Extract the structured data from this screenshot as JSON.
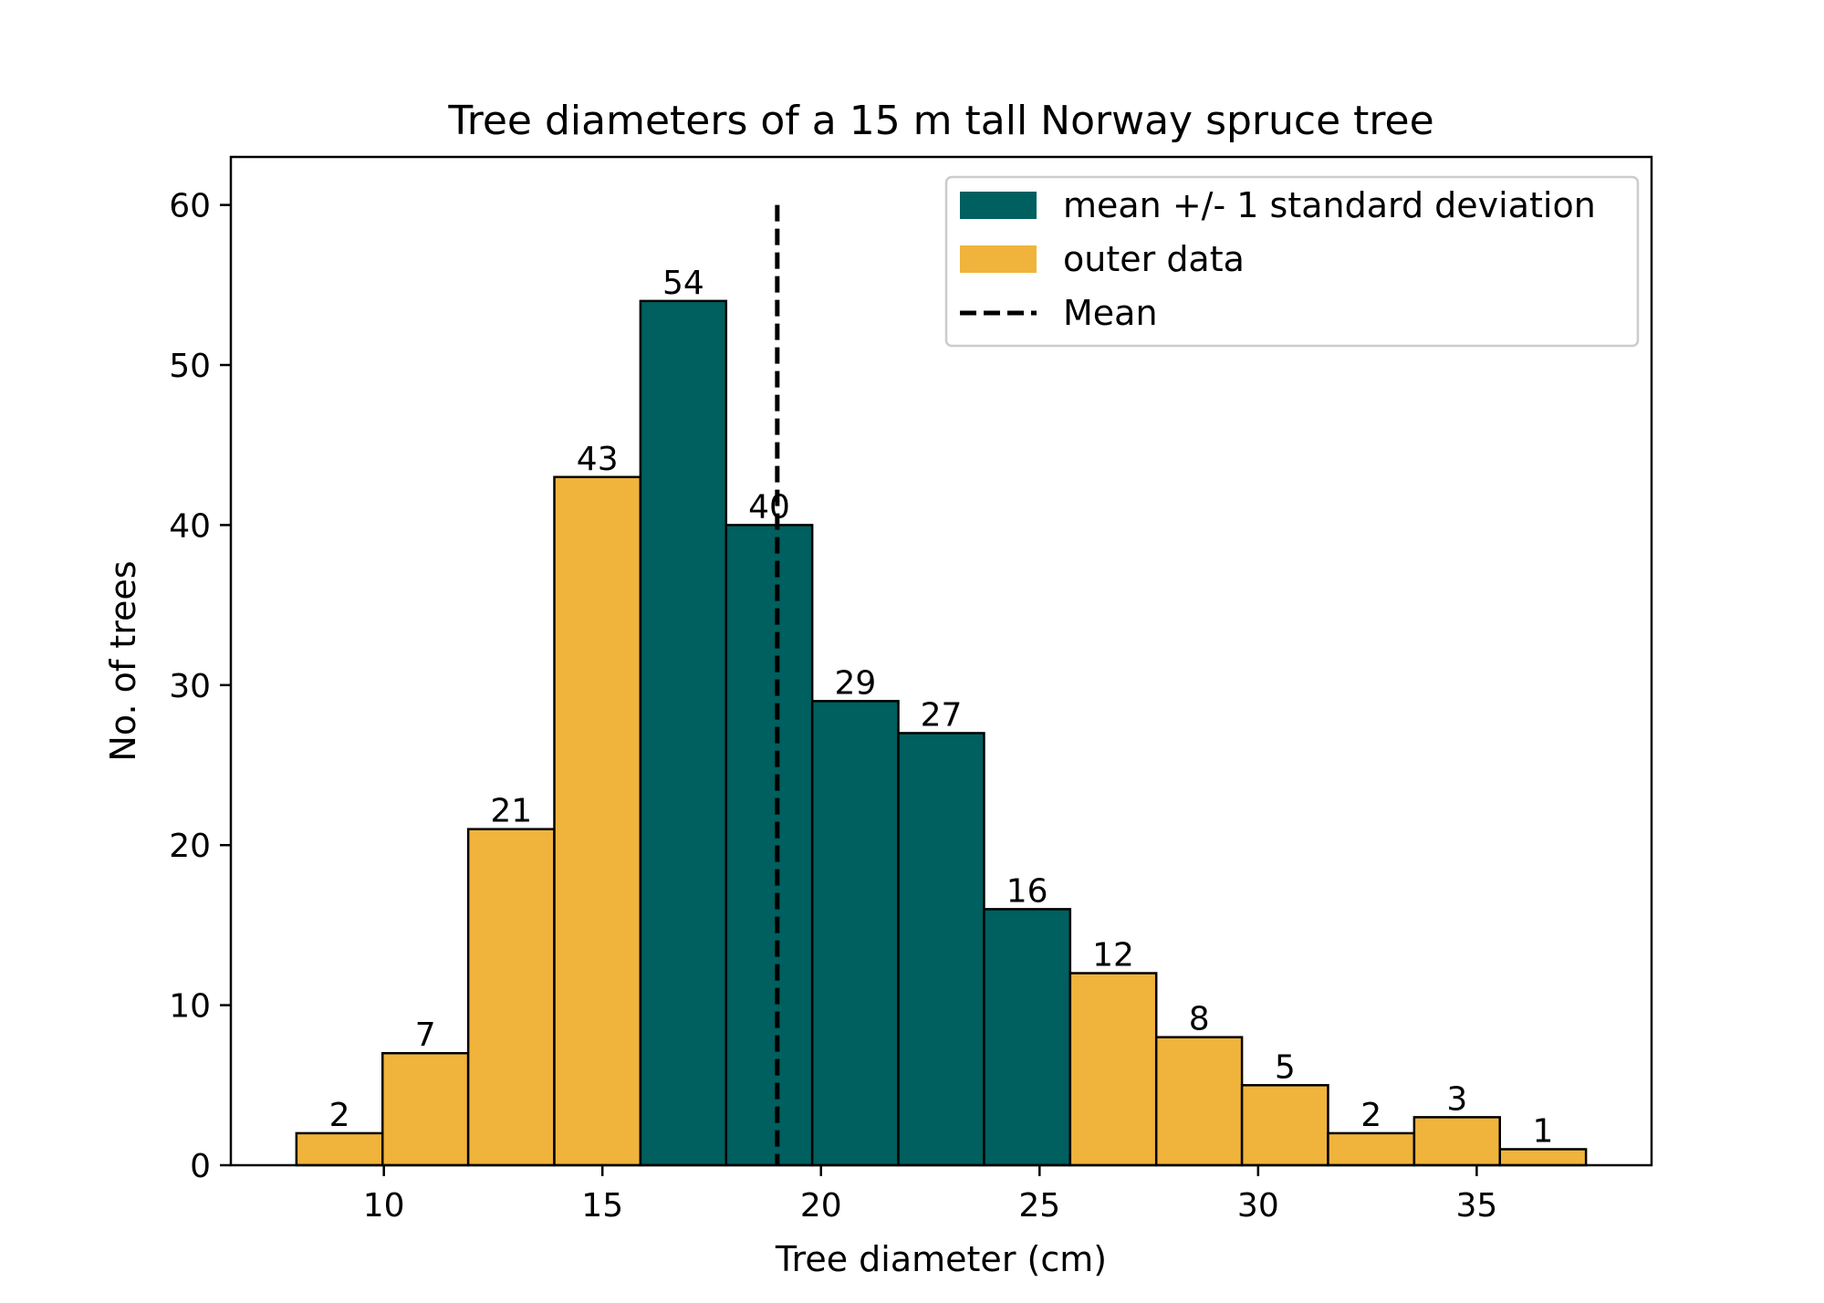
{
  "chart_data": {
    "type": "bar",
    "title": "Tree diameters of a 15 m tall Norway spruce tree",
    "xlabel": "Tree diameter (cm)",
    "ylabel": "No. of trees",
    "xlim": [
      6.5,
      39
    ],
    "ylim": [
      0,
      63
    ],
    "xticks": [
      10,
      15,
      20,
      25,
      30,
      35
    ],
    "yticks": [
      0,
      10,
      20,
      30,
      40,
      50,
      60
    ],
    "bins": [
      {
        "start": 8.0,
        "end": 9.97,
        "value": 2,
        "group": "outer"
      },
      {
        "start": 9.97,
        "end": 11.93,
        "value": 7,
        "group": "outer"
      },
      {
        "start": 11.93,
        "end": 13.9,
        "value": 21,
        "group": "outer"
      },
      {
        "start": 13.9,
        "end": 15.87,
        "value": 43,
        "group": "outer"
      },
      {
        "start": 15.87,
        "end": 17.83,
        "value": 54,
        "group": "inner"
      },
      {
        "start": 17.83,
        "end": 19.8,
        "value": 40,
        "group": "inner"
      },
      {
        "start": 19.8,
        "end": 21.77,
        "value": 29,
        "group": "inner"
      },
      {
        "start": 21.77,
        "end": 23.73,
        "value": 27,
        "group": "inner"
      },
      {
        "start": 23.73,
        "end": 25.7,
        "value": 16,
        "group": "inner"
      },
      {
        "start": 25.7,
        "end": 27.67,
        "value": 12,
        "group": "outer"
      },
      {
        "start": 27.67,
        "end": 29.63,
        "value": 8,
        "group": "outer"
      },
      {
        "start": 29.63,
        "end": 31.6,
        "value": 5,
        "group": "outer"
      },
      {
        "start": 31.6,
        "end": 33.57,
        "value": 2,
        "group": "outer"
      },
      {
        "start": 33.57,
        "end": 35.53,
        "value": 3,
        "group": "outer"
      },
      {
        "start": 35.53,
        "end": 37.5,
        "value": 1,
        "group": "outer"
      }
    ],
    "mean": {
      "x": 19.0,
      "y_top": 60
    },
    "legend": {
      "position": "upper-right",
      "items": [
        {
          "label": "mean +/- 1 standard deviation",
          "kind": "patch",
          "color": "#005f5f"
        },
        {
          "label": "outer data",
          "kind": "patch",
          "color": "#f0b43c"
        },
        {
          "label": "Mean",
          "kind": "dashed-line",
          "color": "#000000"
        }
      ]
    },
    "colors": {
      "inner": "#005f5f",
      "outer": "#f0b43c",
      "edge": "#000000",
      "mean_line": "#000000"
    }
  }
}
